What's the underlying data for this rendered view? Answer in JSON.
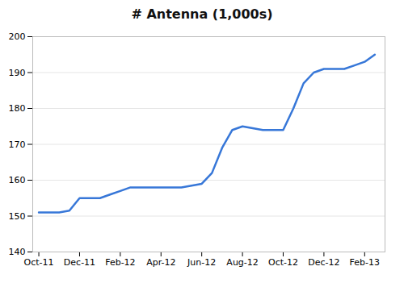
{
  "chart_data": {
    "type": "line",
    "title": "# Antenna  (1,000s)",
    "x": [
      0,
      0.5,
      1,
      1.5,
      2,
      2.5,
      3,
      3.5,
      4,
      4.5,
      5,
      5.5,
      6,
      6.5,
      7,
      7.5,
      8,
      8.5,
      9,
      9.5,
      10,
      10.5,
      11,
      11.5,
      12,
      12.5,
      13,
      13.5,
      14,
      14.5,
      15,
      15.5,
      16,
      16.5
    ],
    "values": [
      151,
      151,
      151,
      151.5,
      155,
      155,
      155,
      156,
      157,
      158,
      158,
      158,
      158,
      158,
      158,
      158.5,
      159,
      162,
      169,
      174,
      175,
      174.5,
      174,
      174,
      174,
      180,
      187,
      190,
      191,
      191,
      191,
      192,
      193,
      195
    ],
    "color": "#3777d8",
    "xlim": [
      -0.3,
      17.0
    ],
    "xticks": [
      {
        "value": 0,
        "label": "Oct-11"
      },
      {
        "value": 2,
        "label": "Dec-11"
      },
      {
        "value": 4,
        "label": "Feb-12"
      },
      {
        "value": 6,
        "label": "Apr-12"
      },
      {
        "value": 8,
        "label": "Jun-12"
      },
      {
        "value": 10,
        "label": "Aug-12"
      },
      {
        "value": 12,
        "label": "Oct-12"
      },
      {
        "value": 14,
        "label": "Dec-12"
      },
      {
        "value": 16,
        "label": "Feb-13"
      }
    ],
    "ylim": [
      140,
      200
    ],
    "yticks": [
      140,
      150,
      160,
      170,
      180,
      190,
      200
    ],
    "grid": true
  }
}
